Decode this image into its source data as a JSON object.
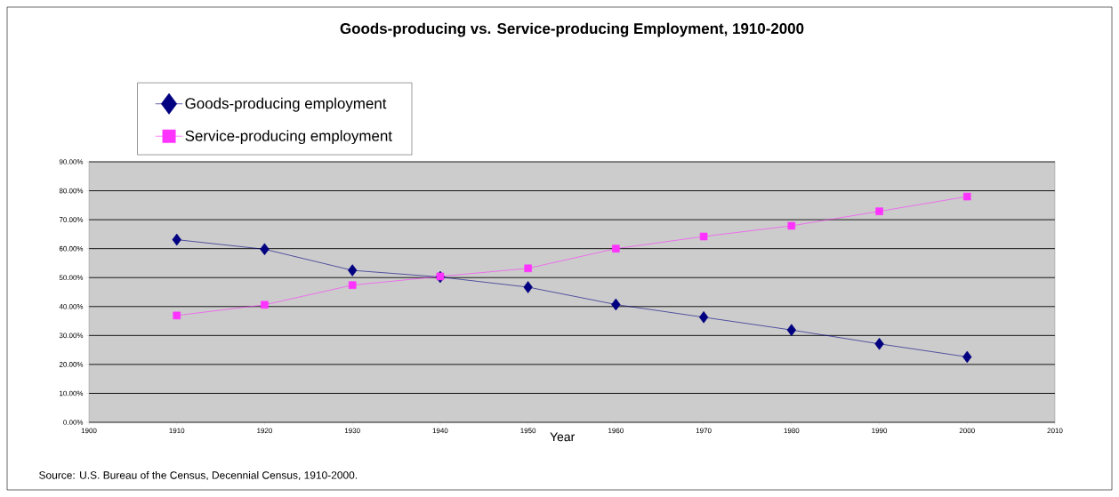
{
  "chart_data": {
    "type": "line",
    "title": "Goods-producing vs. Service-producing Employment, 1910-2000",
    "xlabel": "Year",
    "annotations": [
      "Source: U.S. Bureau of the Census, Decennial Census, 1910-2000."
    ],
    "x": [
      1910,
      1920,
      1930,
      1940,
      1950,
      1960,
      1970,
      1980,
      1990,
      2000
    ],
    "series": [
      {
        "name": "Goods-producing employment",
        "color": "#000080",
        "marker": "diamond",
        "values": [
          63.1,
          59.8,
          52.5,
          50.2,
          46.7,
          40.7,
          36.3,
          31.9,
          27.1,
          22.6
        ]
      },
      {
        "name": "Service-producing employment",
        "color": "#ff33ff",
        "marker": "square",
        "values": [
          36.9,
          40.6,
          47.4,
          50.4,
          53.2,
          60.0,
          64.2,
          67.9,
          72.9,
          78.0
        ]
      }
    ],
    "xlim": [
      1900,
      2010
    ],
    "xticks": [
      1900,
      1910,
      1920,
      1930,
      1940,
      1950,
      1960,
      1970,
      1980,
      1990,
      2000,
      2010
    ],
    "ylim": [
      0,
      90
    ],
    "yticks": [
      {
        "value": 0,
        "label": "0.00%"
      },
      {
        "value": 10,
        "label": "10.00%"
      },
      {
        "value": 20,
        "label": "20.00%"
      },
      {
        "value": 30,
        "label": "30.00%"
      },
      {
        "value": 40,
        "label": "40.00%"
      },
      {
        "value": 50,
        "label": "50.00%"
      },
      {
        "value": 60,
        "label": "60.00%"
      },
      {
        "value": 70,
        "label": "70.00%"
      },
      {
        "value": 80,
        "label": "80.00%"
      },
      {
        "value": 90,
        "label": "90.00%"
      }
    ],
    "grid": "y",
    "legend": "top left",
    "line_style": "solid"
  }
}
